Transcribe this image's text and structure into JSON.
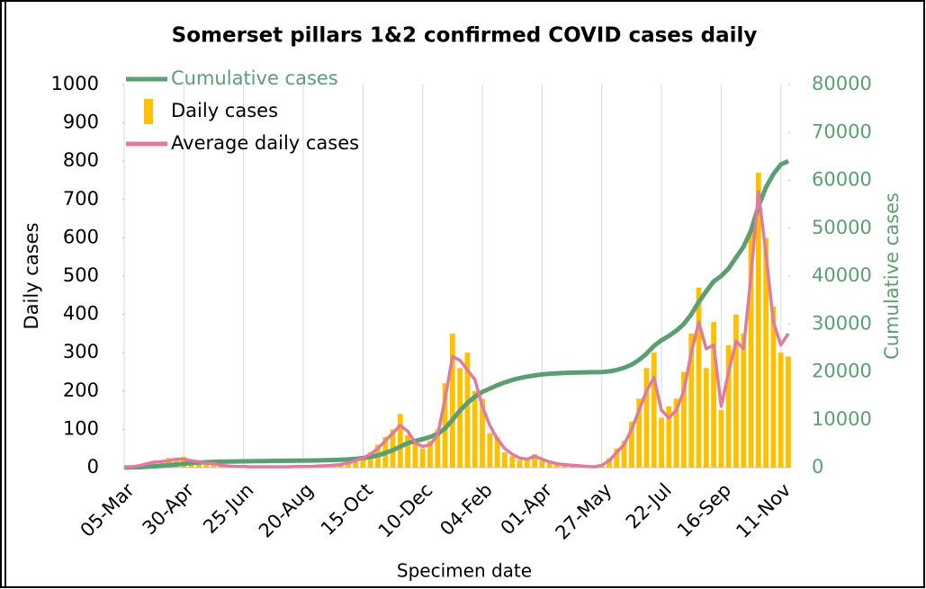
{
  "chart_data": {
    "type": "combo",
    "title": "Somerset pillars 1&2 confirmed COVID cases daily",
    "x_label": "Specimen date",
    "y_label": "Daily cases",
    "y2_label": "Cumulative cases",
    "x": [
      0,
      7,
      14,
      21,
      28,
      35,
      42,
      49,
      56,
      63,
      70,
      77,
      84,
      91,
      98,
      105,
      112,
      119,
      126,
      133,
      140,
      147,
      154,
      161,
      168,
      175,
      182,
      189,
      196,
      203,
      210,
      217,
      224,
      231,
      238,
      245,
      252,
      259,
      266,
      273,
      280,
      287,
      294,
      301,
      308,
      315,
      322,
      329,
      336,
      343,
      350,
      357,
      364,
      371,
      378,
      385,
      392,
      399,
      406,
      413,
      420,
      427,
      434,
      441,
      448,
      455,
      462,
      469,
      476,
      483,
      490,
      497,
      504,
      511,
      518,
      525,
      532,
      539,
      546,
      553,
      560,
      567,
      574,
      581,
      588,
      595,
      602,
      609,
      616,
      623
    ],
    "xlim": [
      0,
      623
    ],
    "xticks": [
      {
        "value": 0,
        "label": "05-Mar"
      },
      {
        "value": 56,
        "label": "30-Apr"
      },
      {
        "value": 112,
        "label": "25-Jun"
      },
      {
        "value": 168,
        "label": "20-Aug"
      },
      {
        "value": 224,
        "label": "15-Oct"
      },
      {
        "value": 280,
        "label": "10-Dec"
      },
      {
        "value": 336,
        "label": "04-Feb"
      },
      {
        "value": 392,
        "label": "01-Apr"
      },
      {
        "value": 448,
        "label": "27-May"
      },
      {
        "value": 504,
        "label": "22-Jul"
      },
      {
        "value": 560,
        "label": "16-Sep"
      },
      {
        "value": 616,
        "label": "11-Nov"
      }
    ],
    "ylim": [
      0,
      1000
    ],
    "yticks": [
      0,
      100,
      200,
      300,
      400,
      500,
      600,
      700,
      800,
      900,
      1000
    ],
    "y2lim": [
      0,
      80000
    ],
    "y2ticks": [
      0,
      10000,
      20000,
      30000,
      40000,
      50000,
      60000,
      70000,
      80000
    ],
    "grid": "x",
    "series": [
      {
        "name": "Cumulative cases",
        "type": "line",
        "axis": "y2",
        "color": "#5b9e72",
        "values": [
          0,
          30,
          80,
          160,
          260,
          370,
          500,
          650,
          800,
          950,
          1050,
          1130,
          1200,
          1240,
          1270,
          1300,
          1320,
          1340,
          1360,
          1380,
          1400,
          1410,
          1430,
          1450,
          1470,
          1490,
          1510,
          1540,
          1580,
          1630,
          1710,
          1830,
          2000,
          2230,
          2570,
          3040,
          3650,
          4400,
          5100,
          5550,
          5950,
          6400,
          7000,
          8200,
          10000,
          11900,
          13500,
          14800,
          15800,
          16500,
          17200,
          17800,
          18300,
          18700,
          19000,
          19250,
          19450,
          19600,
          19700,
          19780,
          19830,
          19870,
          19900,
          19920,
          19960,
          20100,
          20400,
          20850,
          21500,
          22500,
          23800,
          25400,
          26600,
          27500,
          28600,
          30000,
          32000,
          34600,
          36800,
          38900,
          40000,
          41600,
          43900,
          46100,
          49500,
          54500,
          58500,
          61300,
          63300,
          64000
        ]
      },
      {
        "name": "Daily cases",
        "type": "bar",
        "color": "#ffc000",
        "values": [
          0,
          3,
          8,
          12,
          18,
          14,
          25,
          20,
          28,
          15,
          18,
          10,
          12,
          5,
          3,
          4,
          3,
          2,
          1,
          3,
          2,
          2,
          1,
          4,
          2,
          3,
          5,
          4,
          8,
          10,
          15,
          20,
          30,
          40,
          60,
          80,
          100,
          140,
          85,
          70,
          50,
          70,
          100,
          220,
          350,
          260,
          300,
          200,
          180,
          90,
          80,
          40,
          30,
          20,
          25,
          35,
          18,
          12,
          8,
          10,
          5,
          4,
          2,
          3,
          8,
          25,
          50,
          70,
          120,
          180,
          260,
          300,
          130,
          160,
          180,
          250,
          350,
          470,
          260,
          380,
          150,
          320,
          400,
          350,
          620,
          770,
          600,
          420,
          300,
          290
        ]
      },
      {
        "name": "Average daily cases",
        "type": "line",
        "color": "#e07a9e",
        "values": [
          0,
          2,
          5,
          10,
          14,
          16,
          18,
          22,
          22,
          18,
          15,
          12,
          10,
          6,
          4,
          3,
          3,
          2,
          2,
          2,
          2,
          2,
          2,
          3,
          3,
          3,
          4,
          5,
          6,
          8,
          12,
          18,
          25,
          35,
          50,
          70,
          90,
          110,
          95,
          65,
          55,
          60,
          85,
          180,
          290,
          280,
          255,
          230,
          160,
          110,
          75,
          50,
          35,
          25,
          22,
          30,
          22,
          15,
          10,
          8,
          6,
          5,
          3,
          2,
          6,
          18,
          40,
          60,
          100,
          150,
          200,
          235,
          150,
          130,
          150,
          200,
          300,
          380,
          310,
          320,
          160,
          250,
          330,
          310,
          500,
          720,
          560,
          380,
          320,
          350
        ]
      }
    ]
  }
}
